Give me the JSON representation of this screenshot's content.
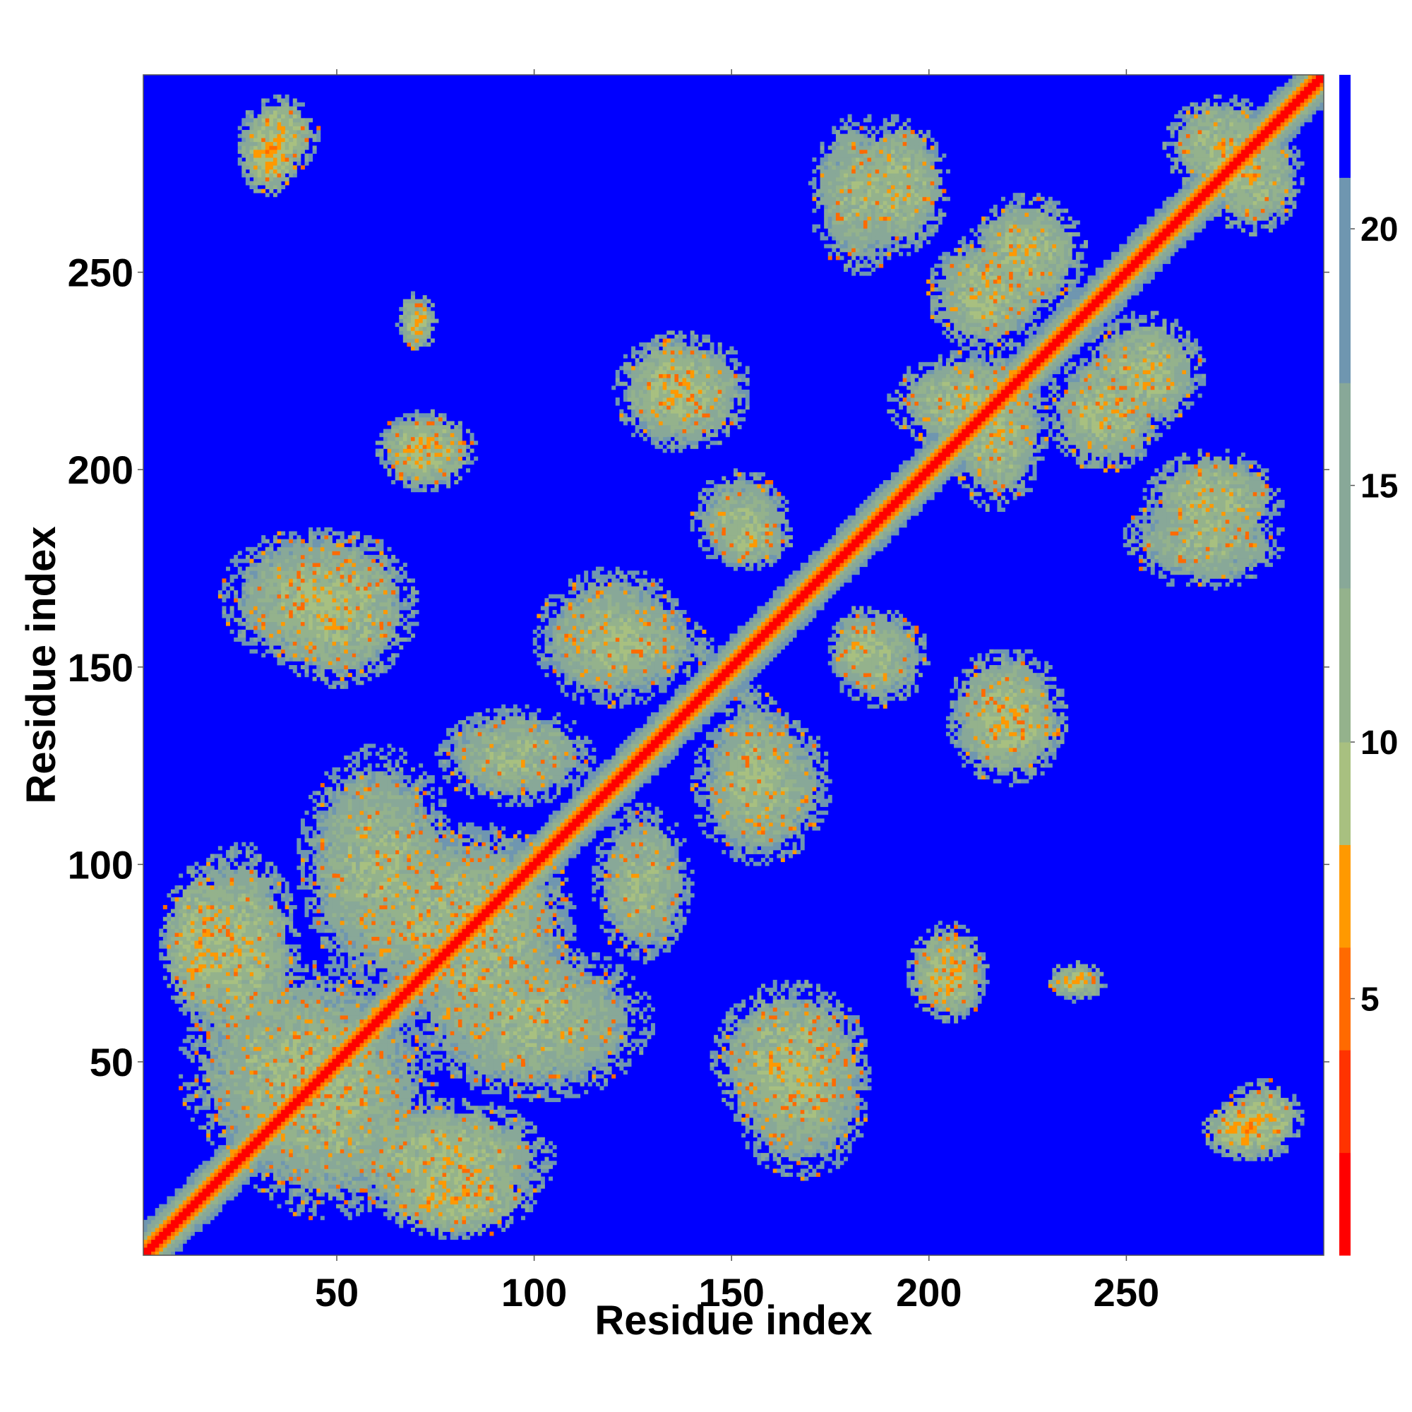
{
  "chart_data": {
    "type": "heatmap",
    "title": "",
    "xlabel": "Residue index",
    "ylabel": "Residue index",
    "n_residues": 300,
    "xlim": [
      1,
      300
    ],
    "ylim": [
      1,
      300
    ],
    "x_ticks": [
      50,
      100,
      150,
      200,
      250
    ],
    "y_ticks": [
      50,
      100,
      150,
      200,
      250
    ],
    "colorbar": {
      "ticks": [
        5,
        10,
        15,
        20
      ],
      "range": [
        0,
        23
      ],
      "levels": [
        {
          "max": 2,
          "color": "#ff0000"
        },
        {
          "max": 4,
          "color": "#ff3300"
        },
        {
          "max": 6,
          "color": "#ff6a00"
        },
        {
          "max": 8,
          "color": "#ff9900"
        },
        {
          "max": 10,
          "color": "#a8c080"
        },
        {
          "max": 13,
          "color": "#94b28c"
        },
        {
          "max": 17,
          "color": "#88a898"
        },
        {
          "max": 21,
          "color": "#6f96b0"
        },
        {
          "max": 23,
          "color": "#0000ff"
        }
      ]
    },
    "diagonal_band_width": 8,
    "contact_regions": [
      {
        "x": [
          5,
          25
        ],
        "y": [
          60,
          100
        ],
        "dist": 9
      },
      {
        "x": [
          10,
          70
        ],
        "y": [
          20,
          75
        ],
        "dist": 11
      },
      {
        "x": [
          20,
          65
        ],
        "y": [
          150,
          185
        ],
        "dist": 11
      },
      {
        "x": [
          25,
          40
        ],
        "y": [
          270,
          290
        ],
        "dist": 8
      },
      {
        "x": [
          45,
          110
        ],
        "y": [
          65,
          110
        ],
        "dist": 11
      },
      {
        "x": [
          50,
          105
        ],
        "y": [
          10,
          40
        ],
        "dist": 10
      },
      {
        "x": [
          60,
          85
        ],
        "y": [
          195,
          215
        ],
        "dist": 9
      },
      {
        "x": [
          70,
          130
        ],
        "y": [
          40,
          80
        ],
        "dist": 11
      },
      {
        "x": [
          75,
          115
        ],
        "y": [
          115,
          140
        ],
        "dist": 11
      },
      {
        "x": [
          100,
          145
        ],
        "y": [
          145,
          165
        ],
        "dist": 11
      },
      {
        "x": [
          120,
          155
        ],
        "y": [
          205,
          235
        ],
        "dist": 10
      },
      {
        "x": [
          140,
          175
        ],
        "y": [
          100,
          140
        ],
        "dist": 11
      },
      {
        "x": [
          145,
          165
        ],
        "y": [
          175,
          190
        ],
        "dist": 10
      },
      {
        "x": [
          145,
          185
        ],
        "y": [
          30,
          70
        ],
        "dist": 10
      },
      {
        "x": [
          175,
          200
        ],
        "y": [
          140,
          165
        ],
        "dist": 11
      },
      {
        "x": [
          180,
          205
        ],
        "y": [
          255,
          290
        ],
        "dist": 10
      },
      {
        "x": [
          195,
          215
        ],
        "y": [
          60,
          80
        ],
        "dist": 10
      },
      {
        "x": [
          205,
          230
        ],
        "y": [
          190,
          230
        ],
        "dist": 10
      },
      {
        "x": [
          205,
          235
        ],
        "y": [
          125,
          145
        ],
        "dist": 10
      },
      {
        "x": [
          210,
          240
        ],
        "y": [
          240,
          270
        ],
        "dist": 10
      },
      {
        "x": [
          230,
          245
        ],
        "y": [
          65,
          75
        ],
        "dist": 9
      },
      {
        "x": [
          230,
          260
        ],
        "y": [
          200,
          230
        ],
        "dist": 10
      },
      {
        "x": [
          250,
          290
        ],
        "y": [
          170,
          195
        ],
        "dist": 11
      },
      {
        "x": [
          260,
          290
        ],
        "y": [
          270,
          295
        ],
        "dist": 10
      },
      {
        "x": [
          275,
          295
        ],
        "y": [
          25,
          45
        ],
        "dist": 9
      }
    ]
  }
}
